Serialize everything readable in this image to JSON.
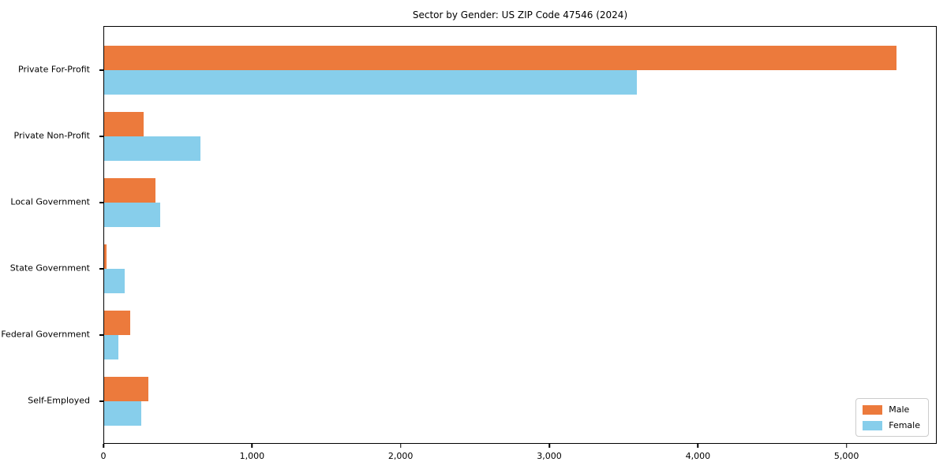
{
  "chart_data": {
    "type": "bar",
    "orientation": "horizontal",
    "title": "Sector by Gender: US ZIP Code 47546 (2024)",
    "categories": [
      "Private For-Profit",
      "Private Non-Profit",
      "Local Government",
      "State Government",
      "Federal Government",
      "Self-Employed"
    ],
    "series": [
      {
        "name": "Male",
        "color": "#EC7A3C",
        "values": [
          5330,
          265,
          347,
          18,
          177,
          297
        ]
      },
      {
        "name": "Female",
        "color": "#87CEEB",
        "values": [
          3584,
          650,
          377,
          138,
          93,
          247
        ]
      }
    ],
    "xlabel": "",
    "ylabel": "",
    "xlim": [
      0,
      5607
    ],
    "xticks": [
      0,
      1000,
      2000,
      3000,
      4000,
      5000
    ],
    "xtick_labels": [
      "0",
      "1,000",
      "2,000",
      "3,000",
      "4,000",
      "5,000"
    ],
    "grid": false,
    "legend": {
      "position": "lower right",
      "entries": [
        {
          "label": "Male",
          "color": "#EC7A3C"
        },
        {
          "label": "Female",
          "color": "#87CEEB"
        }
      ]
    }
  }
}
